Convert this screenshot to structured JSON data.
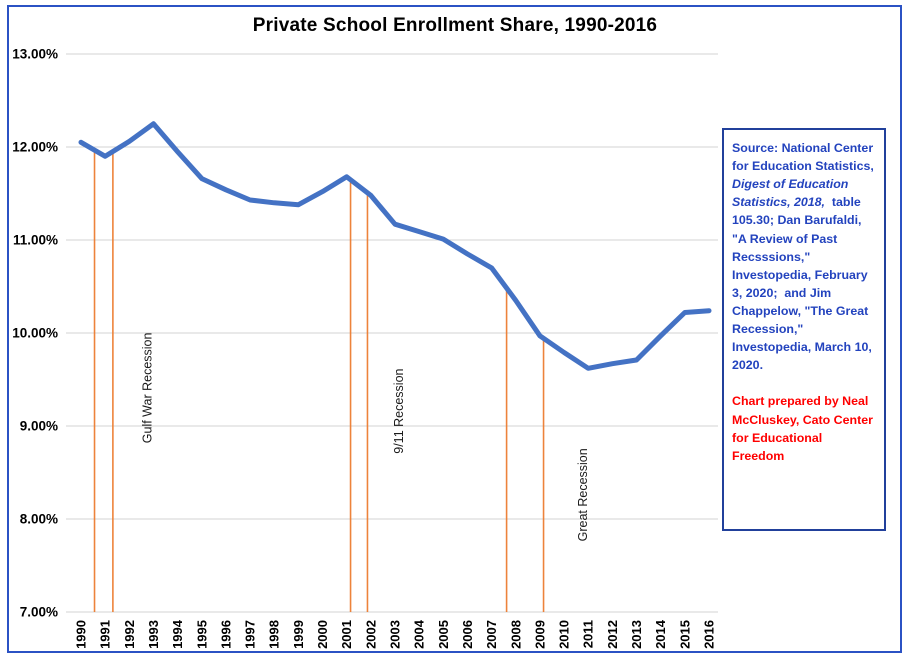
{
  "page": {
    "title": "Private School Enrollment Share, 1990-2016"
  },
  "source_box": {
    "seg1": "Source: National Center for Education Statistics, ",
    "seg2": "Digest of Education Statistics, 2018,",
    "seg3": "  table 105.30; Dan Barufaldi, \"A Review of Past Recsssions,\" Investopedia, February 3, 2020;  and Jim Chappelow, \"The Great Recession,\" Investopedia, March 10, 2020.",
    "credit": "Chart prepared by Neal McCluskey, Cato Center for Educational Freedom",
    "text_color": "#2343BE",
    "credit_color": "#FF0000",
    "border_color": "#21409B"
  },
  "chart_data": {
    "type": "line",
    "title": "Private School Enrollment Share, 1990-2016",
    "xlabel": "",
    "ylabel": "",
    "x": [
      1990,
      1991,
      1992,
      1993,
      1994,
      1995,
      1996,
      1997,
      1998,
      1999,
      2000,
      2001,
      2002,
      2003,
      2004,
      2005,
      2006,
      2007,
      2008,
      2009,
      2010,
      2011,
      2012,
      2013,
      2014,
      2015,
      2016
    ],
    "values": [
      12.05,
      11.9,
      12.06,
      12.25,
      11.95,
      11.66,
      11.54,
      11.43,
      11.4,
      11.38,
      11.52,
      11.68,
      11.48,
      11.17,
      11.09,
      11.01,
      10.85,
      10.7,
      10.35,
      9.97,
      9.79,
      9.62,
      9.67,
      9.71,
      9.97,
      10.22,
      10.24
    ],
    "ylim": [
      7,
      13
    ],
    "ytick_step": 1,
    "ytick_labels": [
      "13.00%",
      "12.00%",
      "11.00%",
      "10.00%",
      "9.00%",
      "8.00%",
      "7.00%"
    ],
    "grid": "horizontal-only",
    "legend": "none",
    "line_color": "#4472C4",
    "recession_color": "#ED7D31",
    "grid_color": "#D3D3D3",
    "recessions": [
      {
        "label": "Gulf War Recession",
        "start": 1990.56,
        "end": 1991.32,
        "label_pos": {
          "year": 1992.75,
          "pct": 9.41
        }
      },
      {
        "label": "9/11 Recession",
        "start": 2001.16,
        "end": 2001.86,
        "label_pos": {
          "year": 2003.17,
          "pct": 9.16
        }
      },
      {
        "label": "Great Recession",
        "start": 2007.62,
        "end": 2009.15,
        "label_pos": {
          "year": 2010.79,
          "pct": 8.26
        }
      }
    ]
  }
}
